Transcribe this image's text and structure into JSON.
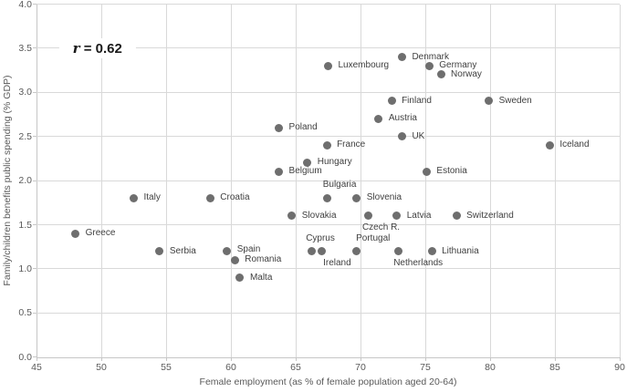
{
  "colors": {
    "dot": "#6e6e6e",
    "grid": "#d9d9d9",
    "axis_line": "#c6c6c6",
    "tick_label": "#595959",
    "data_label": "#3f3f3f",
    "annotation": "#1a1a1a",
    "background": "#ffffff"
  },
  "chart_data": {
    "type": "scatter",
    "title": "",
    "xlabel": "Female employment (as % of female population aged 20-64)",
    "ylabel": "Family/children benefits public spending (% GDP)",
    "xlim": [
      45,
      90
    ],
    "ylim": [
      0,
      4
    ],
    "x_ticks": [
      45,
      50,
      55,
      60,
      65,
      70,
      75,
      80,
      85,
      90
    ],
    "y_ticks": [
      0.0,
      0.5,
      1.0,
      1.5,
      2.0,
      2.5,
      3.0,
      3.5,
      4.0
    ],
    "grid": true,
    "legend": "none",
    "annotation": {
      "var": "r",
      "text": " = 0.62",
      "x": 49.7,
      "y": 3.5
    },
    "points": [
      {
        "label": "Greece",
        "x": 48.0,
        "y": 1.4,
        "label_pos": "right"
      },
      {
        "label": "Italy",
        "x": 52.5,
        "y": 1.8,
        "label_pos": "right"
      },
      {
        "label": "Serbia",
        "x": 54.5,
        "y": 1.2,
        "label_pos": "right"
      },
      {
        "label": "Croatia",
        "x": 58.4,
        "y": 1.8,
        "label_pos": "right"
      },
      {
        "label": "Spain",
        "x": 59.7,
        "y": 1.2,
        "label_pos": "right",
        "dy": -2
      },
      {
        "label": "Romania",
        "x": 60.3,
        "y": 1.1,
        "label_pos": "right"
      },
      {
        "label": "Malta",
        "x": 60.7,
        "y": 0.9,
        "label_pos": "right"
      },
      {
        "label": "Poland",
        "x": 63.7,
        "y": 2.6,
        "label_pos": "right"
      },
      {
        "label": "Belgium",
        "x": 63.7,
        "y": 2.1,
        "label_pos": "right"
      },
      {
        "label": "Slovakia",
        "x": 64.7,
        "y": 1.6,
        "label_pos": "right"
      },
      {
        "label": "Hungary",
        "x": 65.9,
        "y": 2.2,
        "label_pos": "right",
        "dy": -1
      },
      {
        "label": "Cyprus",
        "x": 66.2,
        "y": 1.2,
        "label_pos": "above",
        "dx": 10
      },
      {
        "label": "Ireland",
        "x": 67.0,
        "y": 1.2,
        "label_pos": "below",
        "dx": 17
      },
      {
        "label": "Luxembourg",
        "x": 67.5,
        "y": 3.3,
        "label_pos": "right"
      },
      {
        "label": "France",
        "x": 67.4,
        "y": 2.4,
        "label_pos": "right"
      },
      {
        "label": "Bulgaria",
        "x": 67.4,
        "y": 1.8,
        "label_pos": "above",
        "dx": 14
      },
      {
        "label": "Slovenia",
        "x": 69.7,
        "y": 1.8,
        "label_pos": "right"
      },
      {
        "label": "Portugal",
        "x": 69.7,
        "y": 1.2,
        "label_pos": "above",
        "dx": 18
      },
      {
        "label": "Czech R.",
        "x": 70.6,
        "y": 1.6,
        "label_pos": "below",
        "dx": 14
      },
      {
        "label": "Austria",
        "x": 71.4,
        "y": 2.7,
        "label_pos": "right"
      },
      {
        "label": "Finland",
        "x": 72.4,
        "y": 2.9,
        "label_pos": "right"
      },
      {
        "label": "UK",
        "x": 73.2,
        "y": 2.5,
        "label_pos": "right"
      },
      {
        "label": "Denmark",
        "x": 73.2,
        "y": 3.4,
        "label_pos": "right"
      },
      {
        "label": "Latvia",
        "x": 72.8,
        "y": 1.6,
        "label_pos": "right"
      },
      {
        "label": "Netherlands",
        "x": 72.9,
        "y": 1.2,
        "label_pos": "below",
        "dx": 22
      },
      {
        "label": "Germany",
        "x": 75.3,
        "y": 3.3,
        "label_pos": "right"
      },
      {
        "label": "Estonia",
        "x": 75.1,
        "y": 2.1,
        "label_pos": "right"
      },
      {
        "label": "Lithuania",
        "x": 75.5,
        "y": 1.2,
        "label_pos": "right"
      },
      {
        "label": "Norway",
        "x": 76.2,
        "y": 3.2,
        "label_pos": "right"
      },
      {
        "label": "Switzerland",
        "x": 77.4,
        "y": 1.6,
        "label_pos": "right"
      },
      {
        "label": "Sweden",
        "x": 79.9,
        "y": 2.9,
        "label_pos": "right"
      },
      {
        "label": "Iceland",
        "x": 84.6,
        "y": 2.4,
        "label_pos": "right"
      }
    ]
  }
}
